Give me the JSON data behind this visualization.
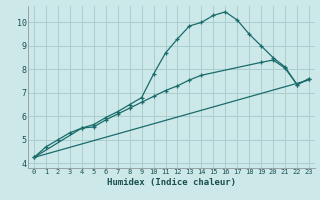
{
  "xlabel": "Humidex (Indice chaleur)",
  "background_color": "#cde8e8",
  "grid_color": "#aacece",
  "line_color": "#1a6b6b",
  "xlim": [
    -0.5,
    23.5
  ],
  "ylim": [
    3.8,
    10.7
  ],
  "yticks": [
    4,
    5,
    6,
    7,
    8,
    9,
    10
  ],
  "xticks": [
    0,
    1,
    2,
    3,
    4,
    5,
    6,
    7,
    8,
    9,
    10,
    11,
    12,
    13,
    14,
    15,
    16,
    17,
    18,
    19,
    20,
    21,
    22,
    23
  ],
  "series1_x": [
    0,
    1,
    2,
    3,
    4,
    5,
    6,
    7,
    8,
    9,
    10,
    11,
    12,
    13,
    14,
    15,
    16,
    17,
    18,
    19,
    20,
    21,
    22,
    23
  ],
  "series1_y": [
    4.25,
    4.7,
    5.0,
    5.3,
    5.5,
    5.65,
    5.95,
    6.2,
    6.5,
    6.8,
    7.8,
    8.7,
    9.3,
    9.85,
    10.0,
    10.3,
    10.45,
    10.1,
    9.5,
    9.0,
    8.5,
    8.1,
    7.35,
    7.6
  ],
  "series2_x": [
    0,
    4,
    5,
    6,
    7,
    8,
    9,
    10,
    11,
    12,
    13,
    14,
    19,
    20,
    21,
    22,
    23
  ],
  "series2_y": [
    4.25,
    5.5,
    5.55,
    5.85,
    6.1,
    6.35,
    6.6,
    6.85,
    7.1,
    7.3,
    7.55,
    7.75,
    8.3,
    8.4,
    8.05,
    7.35,
    7.6
  ],
  "series3_x": [
    0,
    23
  ],
  "series3_y": [
    4.25,
    7.55
  ]
}
